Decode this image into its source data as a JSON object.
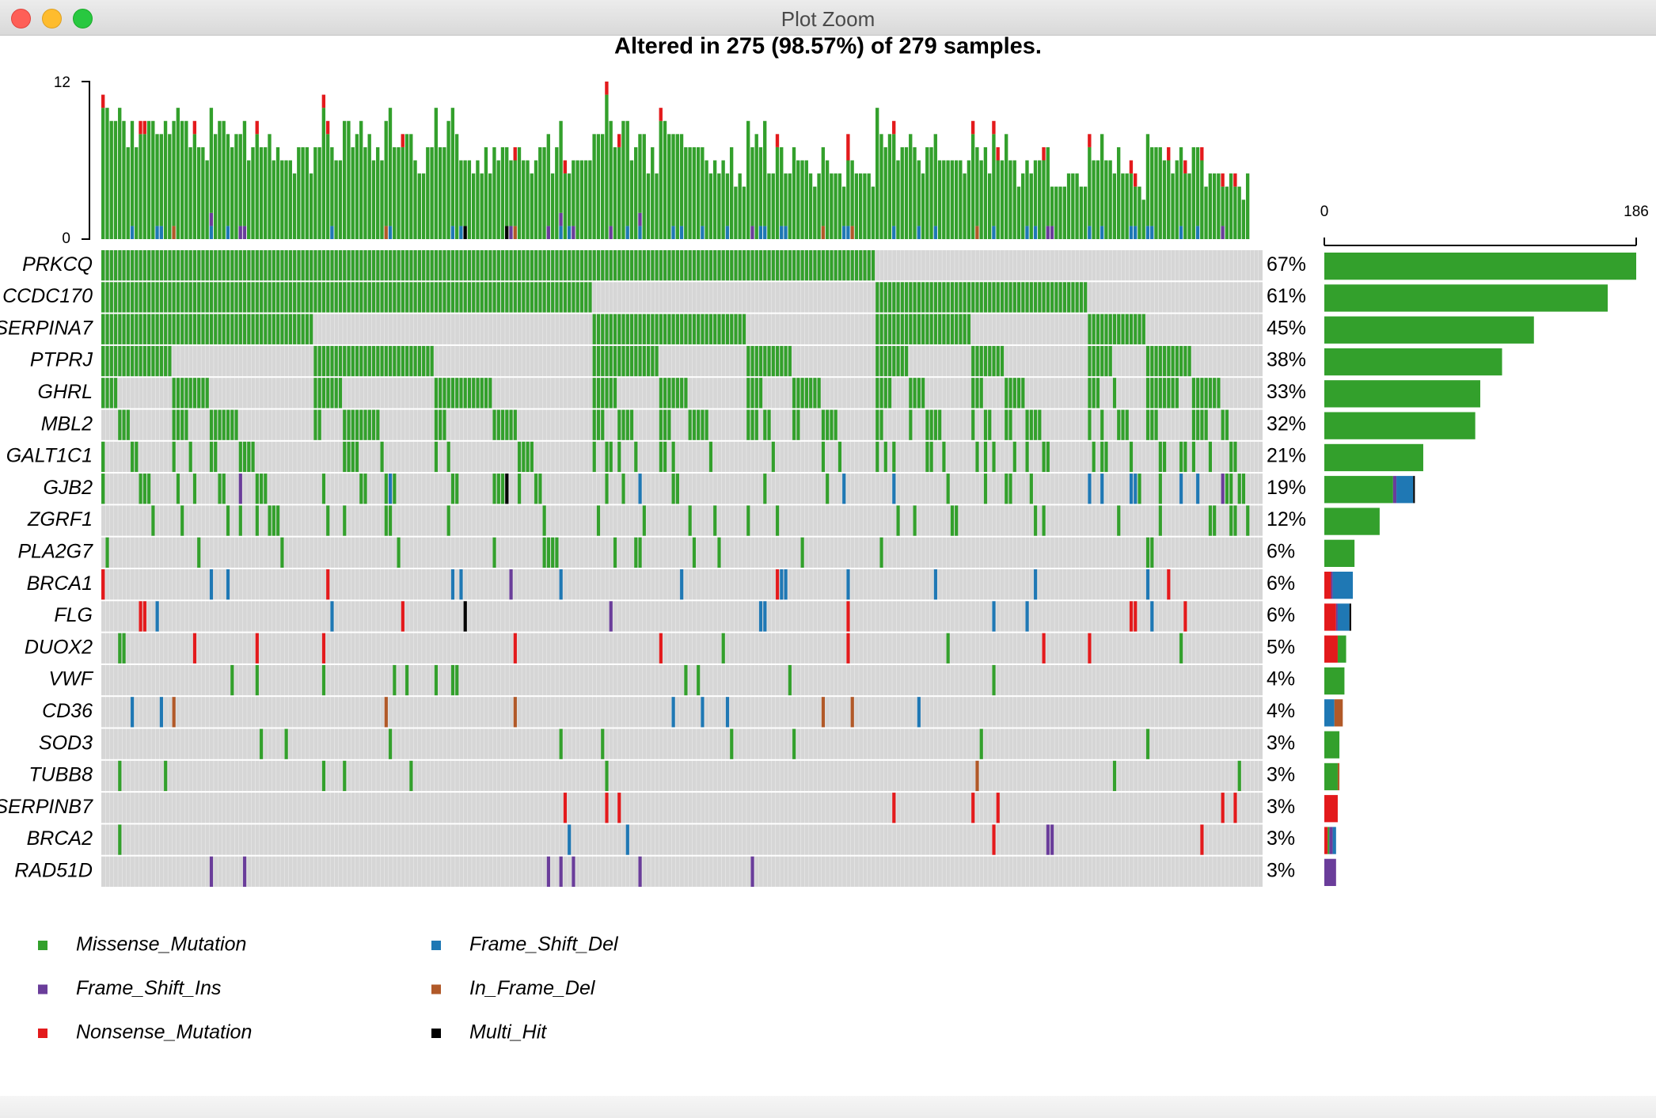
{
  "window": {
    "title": "Plot Zoom"
  },
  "chart_data": {
    "type": "oncoplot",
    "title": "Altered in 275 (98.57%) of 279 samples.",
    "n_samples": 279,
    "tmb_axis": {
      "ylim": [
        0,
        12
      ],
      "tick_labels": [
        "0",
        "12"
      ]
    },
    "gene_bar_axis": {
      "xlim": [
        0,
        186
      ],
      "tick_labels": [
        "0",
        "186"
      ]
    },
    "genes": [
      {
        "name": "PRKCQ",
        "pct": "67%",
        "counts": {
          "Missense_Mutation": 186
        }
      },
      {
        "name": "CCDC170",
        "pct": "61%",
        "counts": {
          "Missense_Mutation": 169
        }
      },
      {
        "name": "SERPINA7",
        "pct": "45%",
        "counts": {
          "Missense_Mutation": 125
        }
      },
      {
        "name": "PTPRJ",
        "pct": "38%",
        "counts": {
          "Missense_Mutation": 106
        }
      },
      {
        "name": "GHRL",
        "pct": "33%",
        "counts": {
          "Missense_Mutation": 93
        }
      },
      {
        "name": "MBL2",
        "pct": "32%",
        "counts": {
          "Missense_Mutation": 90
        }
      },
      {
        "name": "GALT1C1",
        "pct": "21%",
        "counts": {
          "Missense_Mutation": 59
        }
      },
      {
        "name": "GJB2",
        "pct": "19%",
        "counts": {
          "Missense_Mutation": 41,
          "Frame_Shift_Ins": 2,
          "Frame_Shift_Del": 10,
          "Multi_Hit": 1
        }
      },
      {
        "name": "ZGRF1",
        "pct": "12%",
        "counts": {
          "Missense_Mutation": 33
        }
      },
      {
        "name": "PLA2G7",
        "pct": "6%",
        "counts": {
          "Missense_Mutation": 18
        }
      },
      {
        "name": "BRCA1",
        "pct": "6%",
        "counts": {
          "Nonsense_Mutation": 4,
          "Frame_Shift_Ins": 1,
          "Frame_Shift_Del": 12
        }
      },
      {
        "name": "FLG",
        "pct": "6%",
        "counts": {
          "Nonsense_Mutation": 7,
          "Frame_Shift_Ins": 1,
          "Frame_Shift_Del": 7,
          "Multi_Hit": 1
        }
      },
      {
        "name": "DUOX2",
        "pct": "5%",
        "counts": {
          "Missense_Mutation": 5,
          "Nonsense_Mutation": 8
        }
      },
      {
        "name": "VWF",
        "pct": "4%",
        "counts": {
          "Missense_Mutation": 12
        }
      },
      {
        "name": "CD36",
        "pct": "4%",
        "counts": {
          "Frame_Shift_Del": 6,
          "In_Frame_Del": 5
        }
      },
      {
        "name": "SOD3",
        "pct": "3%",
        "counts": {
          "Missense_Mutation": 9
        }
      },
      {
        "name": "TUBB8",
        "pct": "3%",
        "counts": {
          "Missense_Mutation": 8,
          "In_Frame_Del": 1
        }
      },
      {
        "name": "SERPINB7",
        "pct": "3%",
        "counts": {
          "Nonsense_Mutation": 8
        }
      },
      {
        "name": "BRCA2",
        "pct": "3%",
        "counts": {
          "Missense_Mutation": 1,
          "Nonsense_Mutation": 2,
          "Frame_Shift_Ins": 2,
          "Frame_Shift_Del": 2
        }
      },
      {
        "name": "RAD51D",
        "pct": "3%",
        "counts": {
          "Frame_Shift_Ins": 7
        }
      }
    ],
    "legend": {
      "placement": "bottom-left",
      "items": [
        {
          "label": "Missense_Mutation",
          "color": "#33a02c"
        },
        {
          "label": "Frame_Shift_Del",
          "color": "#1f78b4"
        },
        {
          "label": "Frame_Shift_Ins",
          "color": "#6a3d9a"
        },
        {
          "label": "In_Frame_Del",
          "color": "#b15928"
        },
        {
          "label": "Nonsense_Mutation",
          "color": "#e31a1c"
        },
        {
          "label": "Multi_Hit",
          "color": "#000000"
        }
      ]
    },
    "colors": {
      "Missense_Mutation": "#33a02c",
      "Frame_Shift_Del": "#1f78b4",
      "Frame_Shift_Ins": "#6a3d9a",
      "In_Frame_Del": "#b15928",
      "Nonsense_Mutation": "#e31a1c",
      "Multi_Hit": "#000000",
      "background": "#d6d6d6"
    }
  }
}
